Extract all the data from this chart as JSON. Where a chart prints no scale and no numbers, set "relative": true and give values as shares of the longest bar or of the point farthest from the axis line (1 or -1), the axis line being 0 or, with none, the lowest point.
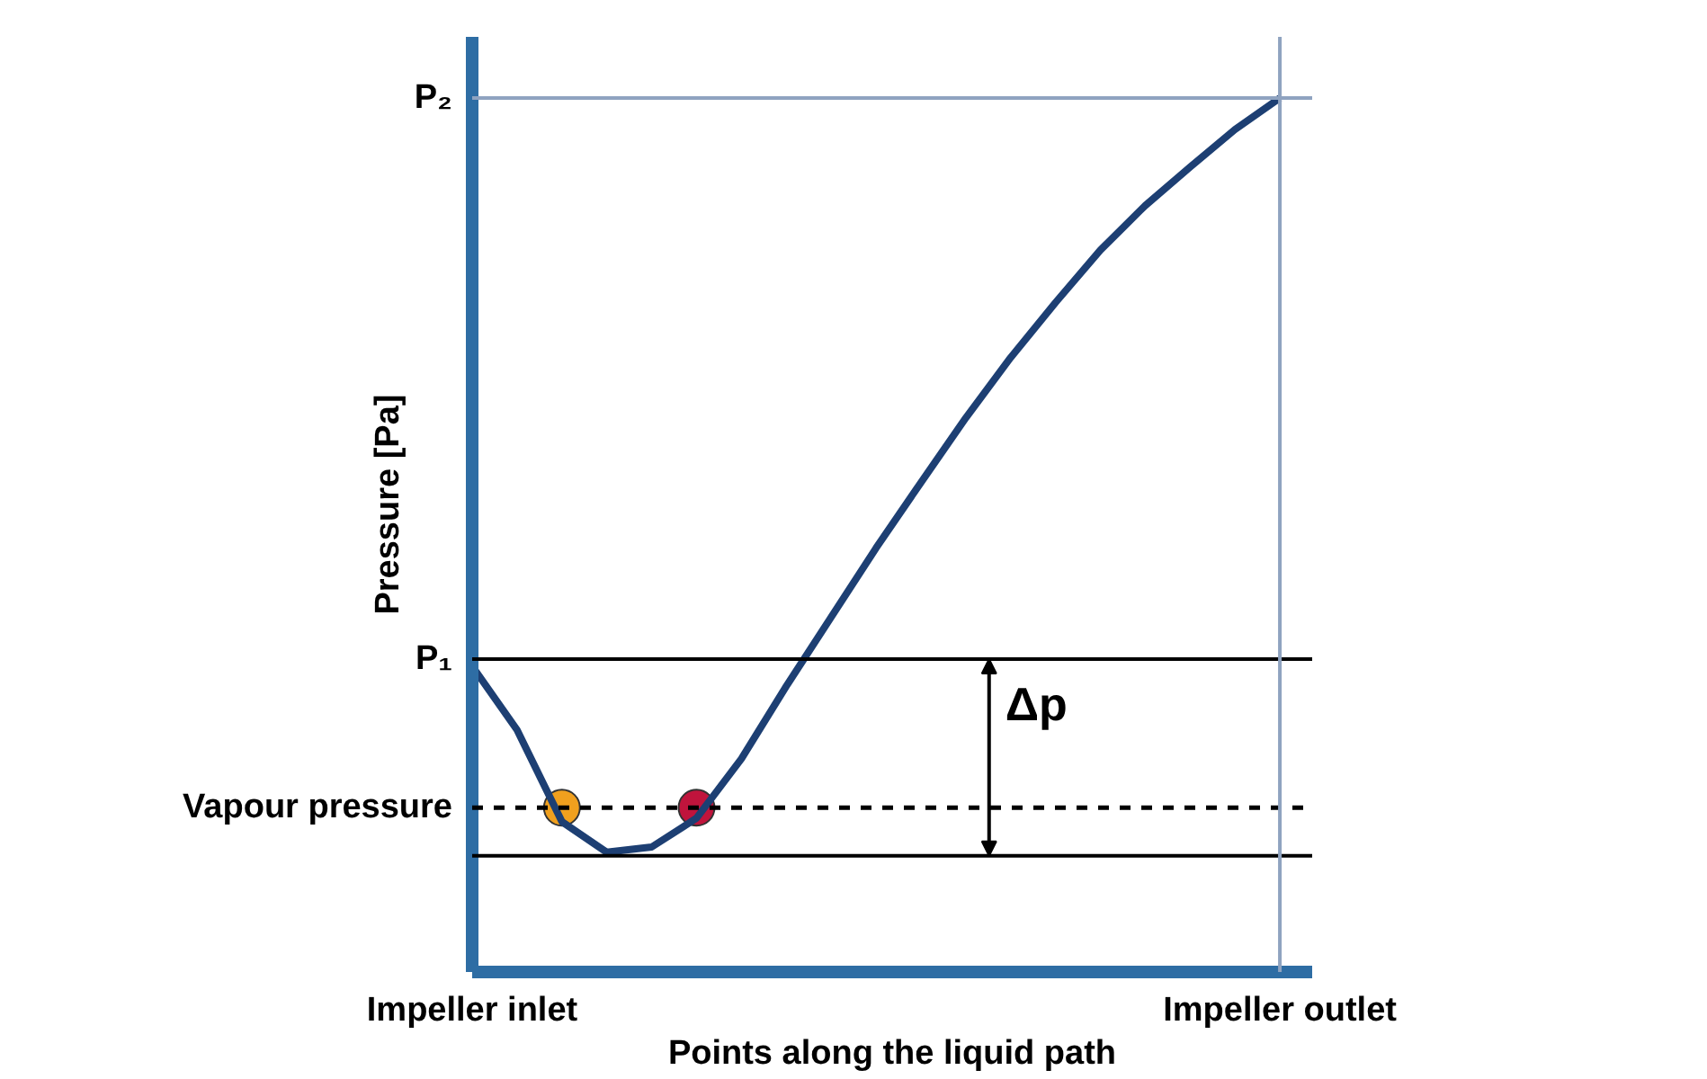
{
  "chart_data": {
    "type": "line",
    "relative": true,
    "xlabel": "Points along the liquid path",
    "ylabel": "Pressure [Pa]",
    "categories": [
      "Impeller inlet",
      null,
      null,
      null,
      null,
      null,
      null,
      null,
      null,
      null,
      null,
      null,
      null,
      null,
      null,
      null,
      null,
      null,
      "Impeller outlet"
    ],
    "series": [
      {
        "color": "#1d3f73",
        "line_style": "solid",
        "values": [
          0.35,
          0.277,
          0.172,
          0.137,
          0.143,
          0.176,
          0.244,
          0.327,
          0.406,
          0.485,
          0.56,
          0.634,
          0.703,
          0.766,
          0.826,
          0.877,
          0.921,
          0.964,
          1.0
        ]
      },
      {
        "type": "scatter",
        "marker": "circle",
        "values": [
          null,
          null,
          0.188,
          null,
          null,
          0.188,
          null,
          null,
          null,
          null,
          null,
          null,
          null,
          null,
          null,
          null,
          null,
          null,
          null
        ],
        "colors": [
          null,
          null,
          "#f0a01e",
          null,
          null,
          "#c0143c",
          null,
          null,
          null,
          null,
          null,
          null,
          null,
          null,
          null,
          null,
          null,
          null,
          null
        ]
      }
    ],
    "ref_lines": [
      {
        "axis": "y",
        "value": 0.358,
        "label": "P₁",
        "color": "#000000",
        "line_style": "solid"
      },
      {
        "axis": "y",
        "value": 1.0,
        "label": "P₂",
        "color": "#8fa3c0",
        "line_style": "solid"
      },
      {
        "axis": "y",
        "value": 0.188,
        "label": "Vapour pressure",
        "color": "#000000",
        "line_style": "dashed"
      },
      {
        "axis": "y",
        "value": 0.133,
        "label": null,
        "color": "#000000",
        "line_style": "solid"
      },
      {
        "axis": "x",
        "value": "Impeller outlet",
        "label": null,
        "color": "#8fa3c0",
        "line_style": "solid"
      }
    ],
    "annotations": [
      "Δp"
    ]
  }
}
